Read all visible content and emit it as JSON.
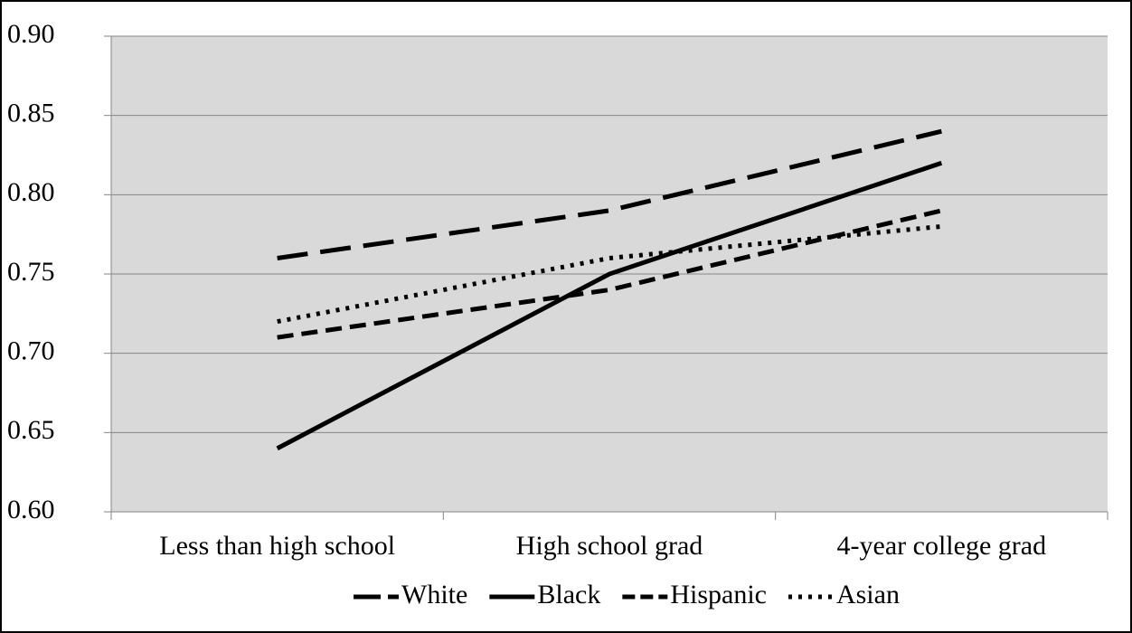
{
  "chart_data": {
    "type": "line",
    "categories": [
      "Less than high school",
      "High school grad",
      "4-year college grad"
    ],
    "series": [
      {
        "name": "White",
        "color": "#000000",
        "dash": "long",
        "values": [
          0.76,
          0.79,
          0.84
        ]
      },
      {
        "name": "Black",
        "color": "#000000",
        "dash": "solid",
        "values": [
          0.64,
          0.75,
          0.82
        ]
      },
      {
        "name": "Hispanic",
        "color": "#000000",
        "dash": "short",
        "values": [
          0.71,
          0.74,
          0.79
        ]
      },
      {
        "name": "Asian",
        "color": "#000000",
        "dash": "dot",
        "values": [
          0.72,
          0.76,
          0.78
        ]
      }
    ],
    "ylim": [
      0.6,
      0.9
    ],
    "yticks": [
      {
        "value": 0.6,
        "label": "0.60"
      },
      {
        "value": 0.65,
        "label": "0.65"
      },
      {
        "value": 0.7,
        "label": "0.70"
      },
      {
        "value": 0.75,
        "label": "0.75"
      },
      {
        "value": 0.8,
        "label": "0.80"
      },
      {
        "value": 0.85,
        "label": "0.85"
      },
      {
        "value": 0.9,
        "label": "0.90"
      }
    ],
    "grid": true,
    "legend": "bottom"
  }
}
